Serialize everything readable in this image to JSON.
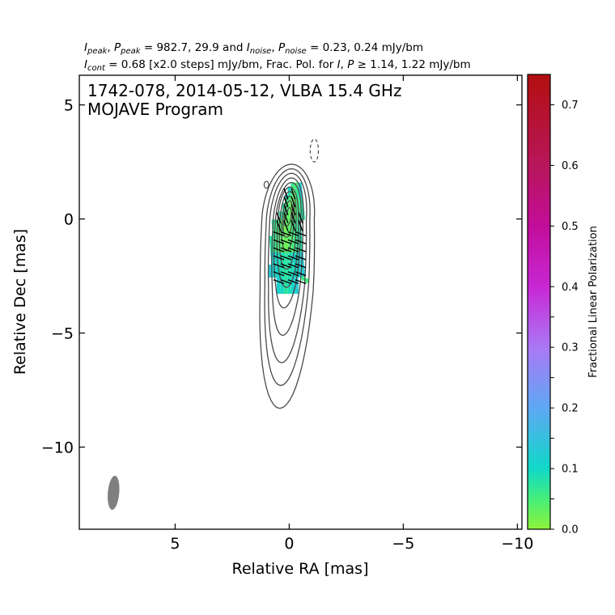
{
  "header": {
    "line1": [
      {
        "t": "I",
        "it": true
      },
      {
        "t": "peak",
        "sub": true,
        "it": true
      },
      {
        "t": ", "
      },
      {
        "t": "P",
        "it": true
      },
      {
        "t": "peak",
        "sub": true,
        "it": true
      },
      {
        "t": " = 982.7, 29.9 and "
      },
      {
        "t": "I",
        "it": true
      },
      {
        "t": "noise",
        "sub": true,
        "it": true
      },
      {
        "t": ", "
      },
      {
        "t": "P",
        "it": true
      },
      {
        "t": "noise",
        "sub": true,
        "it": true
      },
      {
        "t": " = 0.23, 0.24 mJy/bm"
      }
    ],
    "line2": [
      {
        "t": "I",
        "it": true
      },
      {
        "t": "cont",
        "sub": true,
        "it": true
      },
      {
        "t": " = 0.68 [x2.0 steps] mJy/bm, Frac. Pol. for "
      },
      {
        "t": "I",
        "it": true
      },
      {
        "t": ", "
      },
      {
        "t": "P",
        "it": true
      },
      {
        "t": " ≥  1.14, 1.22 mJy/bm"
      }
    ]
  },
  "chart_data": {
    "type": "contour",
    "title_line1": "1742-078, 2014-05-12, VLBA 15.4 GHz",
    "title_line2": "MOJAVE Program",
    "xlabel": "Relative RA [mas]",
    "ylabel": "Relative Dec [mas]",
    "xlim": [
      9.2,
      -10.2
    ],
    "ylim": [
      -13.6,
      6.3
    ],
    "xticks": [
      5,
      0,
      -5,
      -10
    ],
    "xtick_labels": [
      "5",
      "0",
      "−5",
      "−10"
    ],
    "yticks": [
      5,
      0,
      -5,
      -10
    ],
    "ytick_labels": [
      "5",
      "0",
      "−5",
      "−10"
    ],
    "contours": {
      "center": [
        0.05,
        -1.2
      ],
      "positive": [
        {
          "level": 1,
          "ra_half": 1.15,
          "dec_top": 2.4,
          "dec_bottom": -8.3
        },
        {
          "level": 2,
          "ra_half": 0.95,
          "dec_top": 2.2,
          "dec_bottom": -7.3
        },
        {
          "level": 3,
          "ra_half": 0.8,
          "dec_top": 2.0,
          "dec_bottom": -6.3
        },
        {
          "level": 4,
          "ra_half": 0.65,
          "dec_top": 1.8,
          "dec_bottom": -5.1
        },
        {
          "level": 5,
          "ra_half": 0.55,
          "dec_top": 1.6,
          "dec_bottom": -3.9
        },
        {
          "level": 6,
          "ra_half": 0.45,
          "dec_top": 1.4,
          "dec_bottom": -3.0
        },
        {
          "level": 7,
          "ra_half": 0.35,
          "dec_top": 1.2,
          "dec_bottom": -2.2
        },
        {
          "level": 8,
          "ra_half": 0.25,
          "dec_top": 1.0,
          "dec_bottom": -1.4
        },
        {
          "level": 9,
          "ra_half": 0.18,
          "dec_top": 0.8,
          "dec_bottom": -0.8
        },
        {
          "level": 10,
          "ra_half": 0.12,
          "dec_top": 0.5,
          "dec_bottom": -0.3
        }
      ],
      "negative": [
        {
          "ra": -1.1,
          "dec": 3.0,
          "ra_half": 0.18,
          "dec_half": 0.5
        }
      ],
      "small_islands": [
        {
          "ra": 1.0,
          "dec": 1.5,
          "ra_half": 0.1,
          "dec_half": 0.15
        }
      ]
    },
    "beam": {
      "ra": 7.7,
      "dec": -12.0,
      "major_mas": 1.5,
      "minor_mas": 0.5,
      "pa_deg": -5
    },
    "fractional_polarization": {
      "pixels_note": "green to cyan region along inner jet",
      "values_range": [
        0.0,
        0.14
      ]
    },
    "colorbar": {
      "label": "Fractional Linear Polarization",
      "min": 0.0,
      "max": 0.75,
      "labeled_ticks": [
        0.0,
        0.1,
        0.2,
        0.3,
        0.4,
        0.5,
        0.6,
        0.7
      ],
      "labeled_tick_text": [
        "0.0",
        "0.1",
        "0.2",
        "0.3",
        "0.4",
        "0.5",
        "0.6",
        "0.7"
      ],
      "minor_ticks": [
        0.05,
        0.15,
        0.25,
        0.35
      ],
      "colormap": "green-cyan-blue-purple-magenta-red",
      "stops": [
        {
          "v": 0.0,
          "c": "#8ef33a"
        },
        {
          "v": 0.05,
          "c": "#44ee7a"
        },
        {
          "v": 0.1,
          "c": "#10d8c8"
        },
        {
          "v": 0.2,
          "c": "#5ea8f4"
        },
        {
          "v": 0.3,
          "c": "#aa78f5"
        },
        {
          "v": 0.4,
          "c": "#c827d4"
        },
        {
          "v": 0.5,
          "c": "#c20d9a"
        },
        {
          "v": 0.6,
          "c": "#b8165a"
        },
        {
          "v": 0.75,
          "c": "#b20f0f"
        }
      ]
    }
  },
  "colors": {
    "contour": "#4a4a4a",
    "beam": "#7f7f7f",
    "evpa": "#000000"
  }
}
